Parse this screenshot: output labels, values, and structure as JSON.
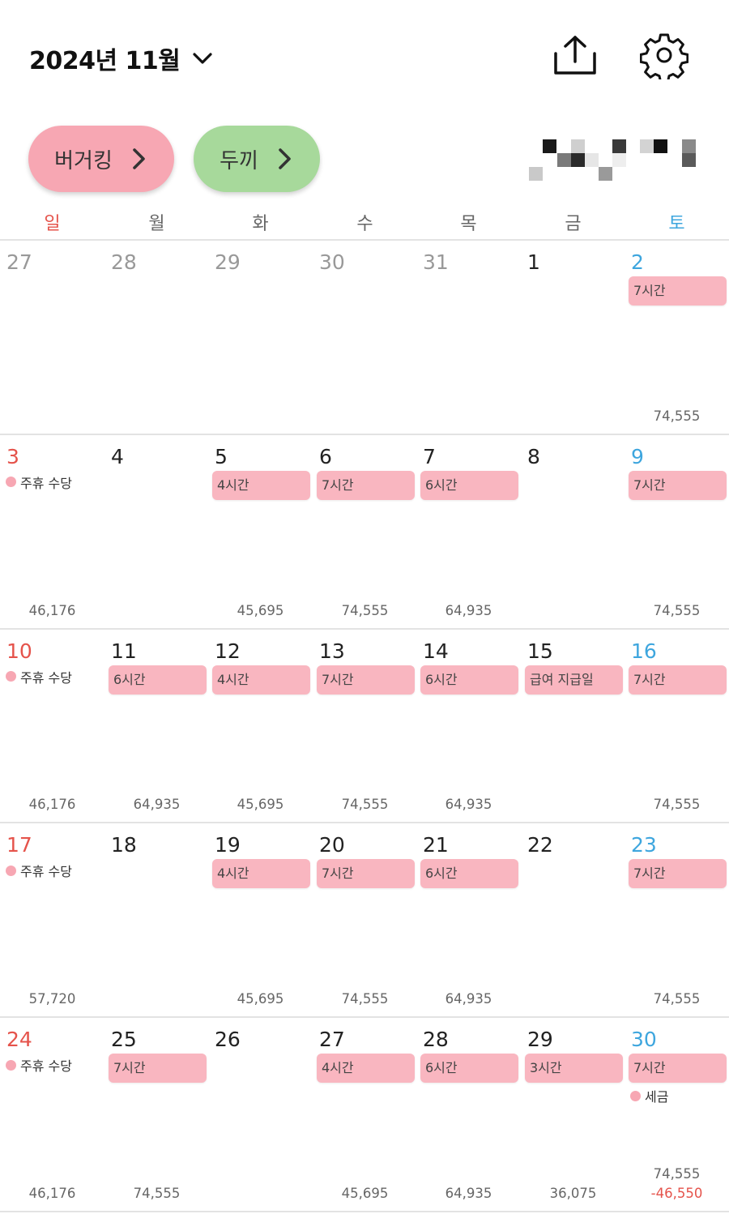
{
  "header": {
    "month_title": "2024년 11월",
    "chevron_icon": "chevron-down-icon",
    "share_icon": "share-upload-icon",
    "settings_icon": "gear-icon"
  },
  "workplaces": [
    {
      "label": "버거킹",
      "color": "#f7a7b3"
    },
    {
      "label": "두끼",
      "color": "#a7d99b"
    }
  ],
  "weekdays": [
    "일",
    "월",
    "화",
    "수",
    "목",
    "금",
    "토"
  ],
  "colors": {
    "sunday": "#e5534b",
    "saturday": "#3ea6de",
    "shift_pill": "#f9b6c0",
    "negative": "#e5534b"
  },
  "weeks": [
    {
      "days": [
        {
          "day": "27",
          "prev": true
        },
        {
          "day": "28",
          "prev": true
        },
        {
          "day": "29",
          "prev": true
        },
        {
          "day": "30",
          "prev": true
        },
        {
          "day": "31",
          "prev": true
        },
        {
          "day": "1"
        },
        {
          "day": "2",
          "shift": "7시간",
          "amount": "74,555"
        }
      ]
    },
    {
      "days": [
        {
          "day": "3",
          "extra": "주휴 수당",
          "amount": "46,176"
        },
        {
          "day": "4"
        },
        {
          "day": "5",
          "shift": "4시간",
          "amount": "45,695"
        },
        {
          "day": "6",
          "shift": "7시간",
          "amount": "74,555"
        },
        {
          "day": "7",
          "shift": "6시간",
          "amount": "64,935"
        },
        {
          "day": "8"
        },
        {
          "day": "9",
          "shift": "7시간",
          "amount": "74,555"
        }
      ]
    },
    {
      "days": [
        {
          "day": "10",
          "extra": "주휴 수당",
          "amount": "46,176"
        },
        {
          "day": "11",
          "shift": "6시간",
          "amount": "64,935"
        },
        {
          "day": "12",
          "shift": "4시간",
          "amount": "45,695"
        },
        {
          "day": "13",
          "shift": "7시간",
          "amount": "74,555"
        },
        {
          "day": "14",
          "shift": "6시간",
          "amount": "64,935"
        },
        {
          "day": "15",
          "shift": "급여 지급일"
        },
        {
          "day": "16",
          "shift": "7시간",
          "amount": "74,555"
        }
      ]
    },
    {
      "days": [
        {
          "day": "17",
          "extra": "주휴 수당",
          "amount": "57,720"
        },
        {
          "day": "18"
        },
        {
          "day": "19",
          "shift": "4시간",
          "amount": "45,695"
        },
        {
          "day": "20",
          "shift": "7시간",
          "amount": "74,555"
        },
        {
          "day": "21",
          "shift": "6시간",
          "amount": "64,935"
        },
        {
          "day": "22"
        },
        {
          "day": "23",
          "shift": "7시간",
          "amount": "74,555"
        }
      ]
    },
    {
      "days": [
        {
          "day": "24",
          "extra": "주휴 수당",
          "amount": "46,176"
        },
        {
          "day": "25",
          "shift": "7시간",
          "amount": "74,555"
        },
        {
          "day": "26"
        },
        {
          "day": "27",
          "shift": "4시간",
          "amount": "45,695"
        },
        {
          "day": "28",
          "shift": "6시간",
          "amount": "64,935"
        },
        {
          "day": "29",
          "shift": "3시간",
          "amount": "36,075"
        },
        {
          "day": "30",
          "shift": "7시간",
          "extra": "세금",
          "amount": "74,555",
          "amount2": "-46,550"
        }
      ]
    }
  ]
}
